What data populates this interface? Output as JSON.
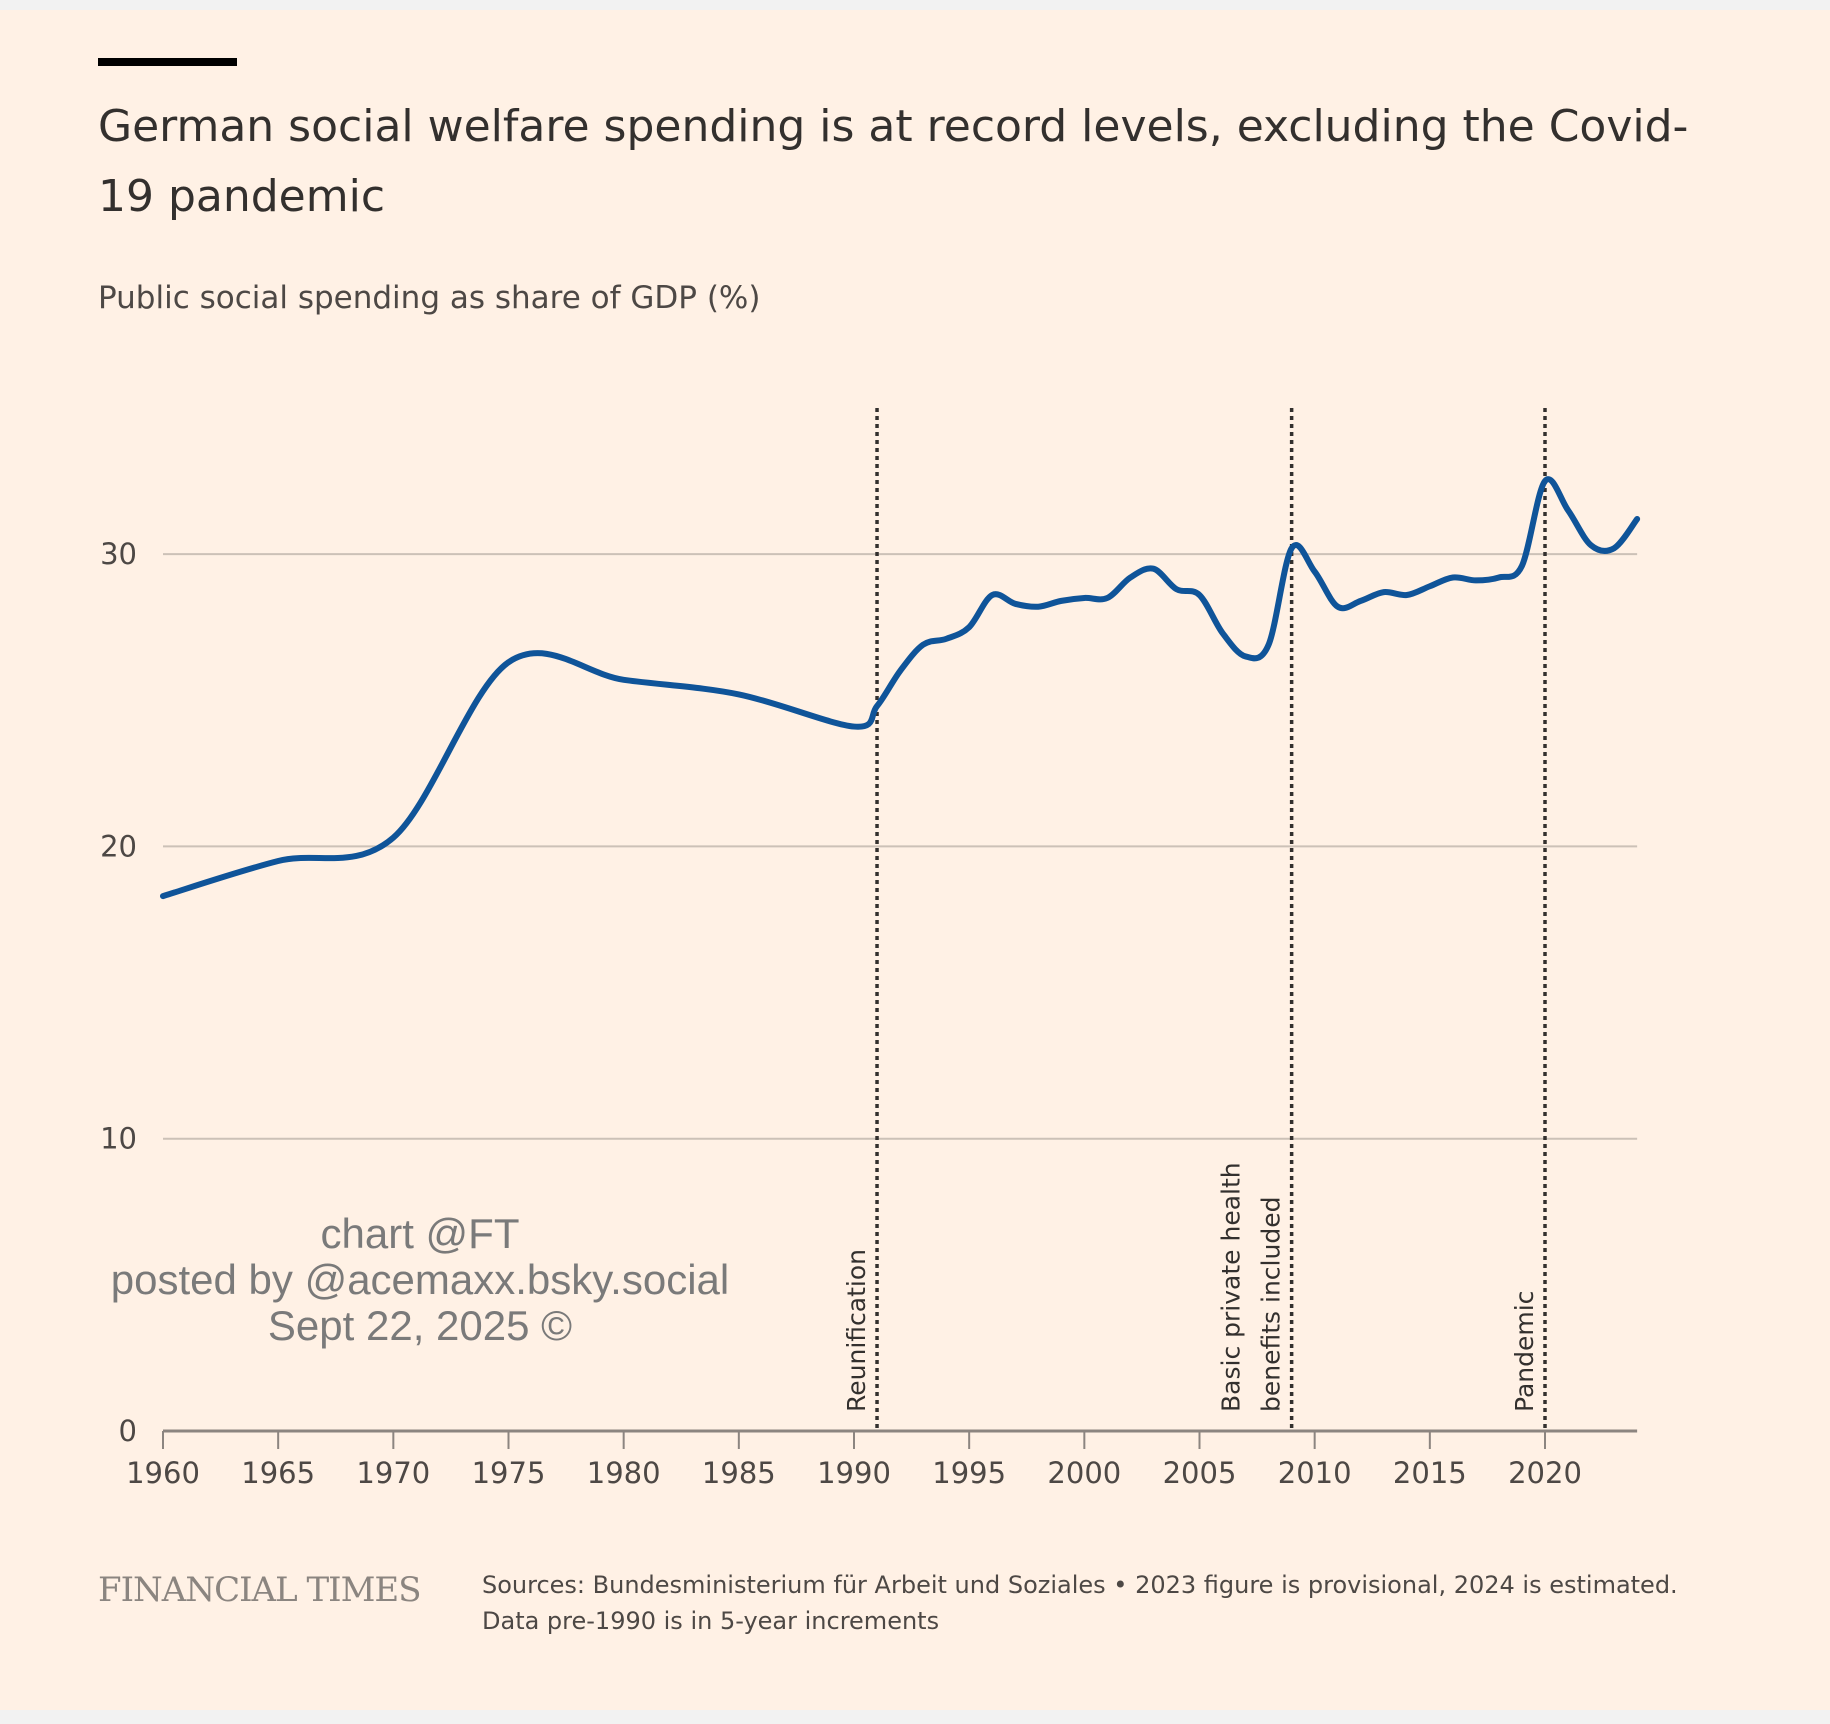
{
  "title": "German social welfare spending is at record levels, excluding the Covid-19 pandemic",
  "subtitle": "Public social spending as share of GDP (%)",
  "brand": "FINANCIAL TIMES",
  "source_line1": "Sources: Bundesministerium für Arbeit und Soziales • 2023 figure is provisional, 2024 is estimated.",
  "source_line2": "Data pre-1990 is in 5-year increments",
  "watermark": [
    "chart @FT",
    "posted by @acemaxx.bsky.social",
    "Sept 22, 2025 ©"
  ],
  "colors": {
    "line": "#0f5499",
    "background": "#fff1e5",
    "grid": "#ccc1b7",
    "text": "#33302e",
    "watermark": "#7a7a7a"
  },
  "chart_data": {
    "type": "line",
    "title": "German social welfare spending is at record levels, excluding the Covid-19 pandemic",
    "ylabel": "Public social spending as share of GDP (%)",
    "xlabel": "",
    "xlim": [
      1960,
      2024
    ],
    "ylim": [
      0,
      35
    ],
    "yticks": [
      0,
      10,
      20,
      30
    ],
    "xticks": [
      1960,
      1965,
      1970,
      1975,
      1980,
      1985,
      1990,
      1995,
      2000,
      2005,
      2010,
      2015,
      2020
    ],
    "grid": "horizontal",
    "series": [
      {
        "name": "Public social spending (% of GDP)",
        "x": [
          1960,
          1965,
          1970,
          1975,
          1980,
          1985,
          1990,
          1991,
          1992,
          1993,
          1994,
          1995,
          1996,
          1997,
          1998,
          1999,
          2000,
          2001,
          2002,
          2003,
          2004,
          2005,
          2006,
          2007,
          2008,
          2009,
          2010,
          2011,
          2012,
          2013,
          2014,
          2015,
          2016,
          2017,
          2018,
          2019,
          2020,
          2021,
          2022,
          2023,
          2024
        ],
        "values": [
          18.3,
          19.5,
          20.3,
          26.3,
          25.7,
          25.2,
          24.1,
          24.8,
          26.0,
          26.9,
          27.1,
          27.5,
          28.6,
          28.3,
          28.2,
          28.4,
          28.5,
          28.5,
          29.2,
          29.5,
          28.8,
          28.6,
          27.3,
          26.5,
          26.9,
          30.2,
          29.4,
          28.2,
          28.4,
          28.7,
          28.6,
          28.9,
          29.2,
          29.1,
          29.2,
          29.6,
          32.5,
          31.5,
          30.3,
          30.2,
          31.2
        ]
      }
    ],
    "annotations": [
      {
        "x": 1991,
        "lines": [
          "Reunification"
        ]
      },
      {
        "x": 2009,
        "lines": [
          "Basic private health",
          "benefits included"
        ]
      },
      {
        "x": 2020,
        "lines": [
          "Pandemic"
        ]
      }
    ]
  }
}
